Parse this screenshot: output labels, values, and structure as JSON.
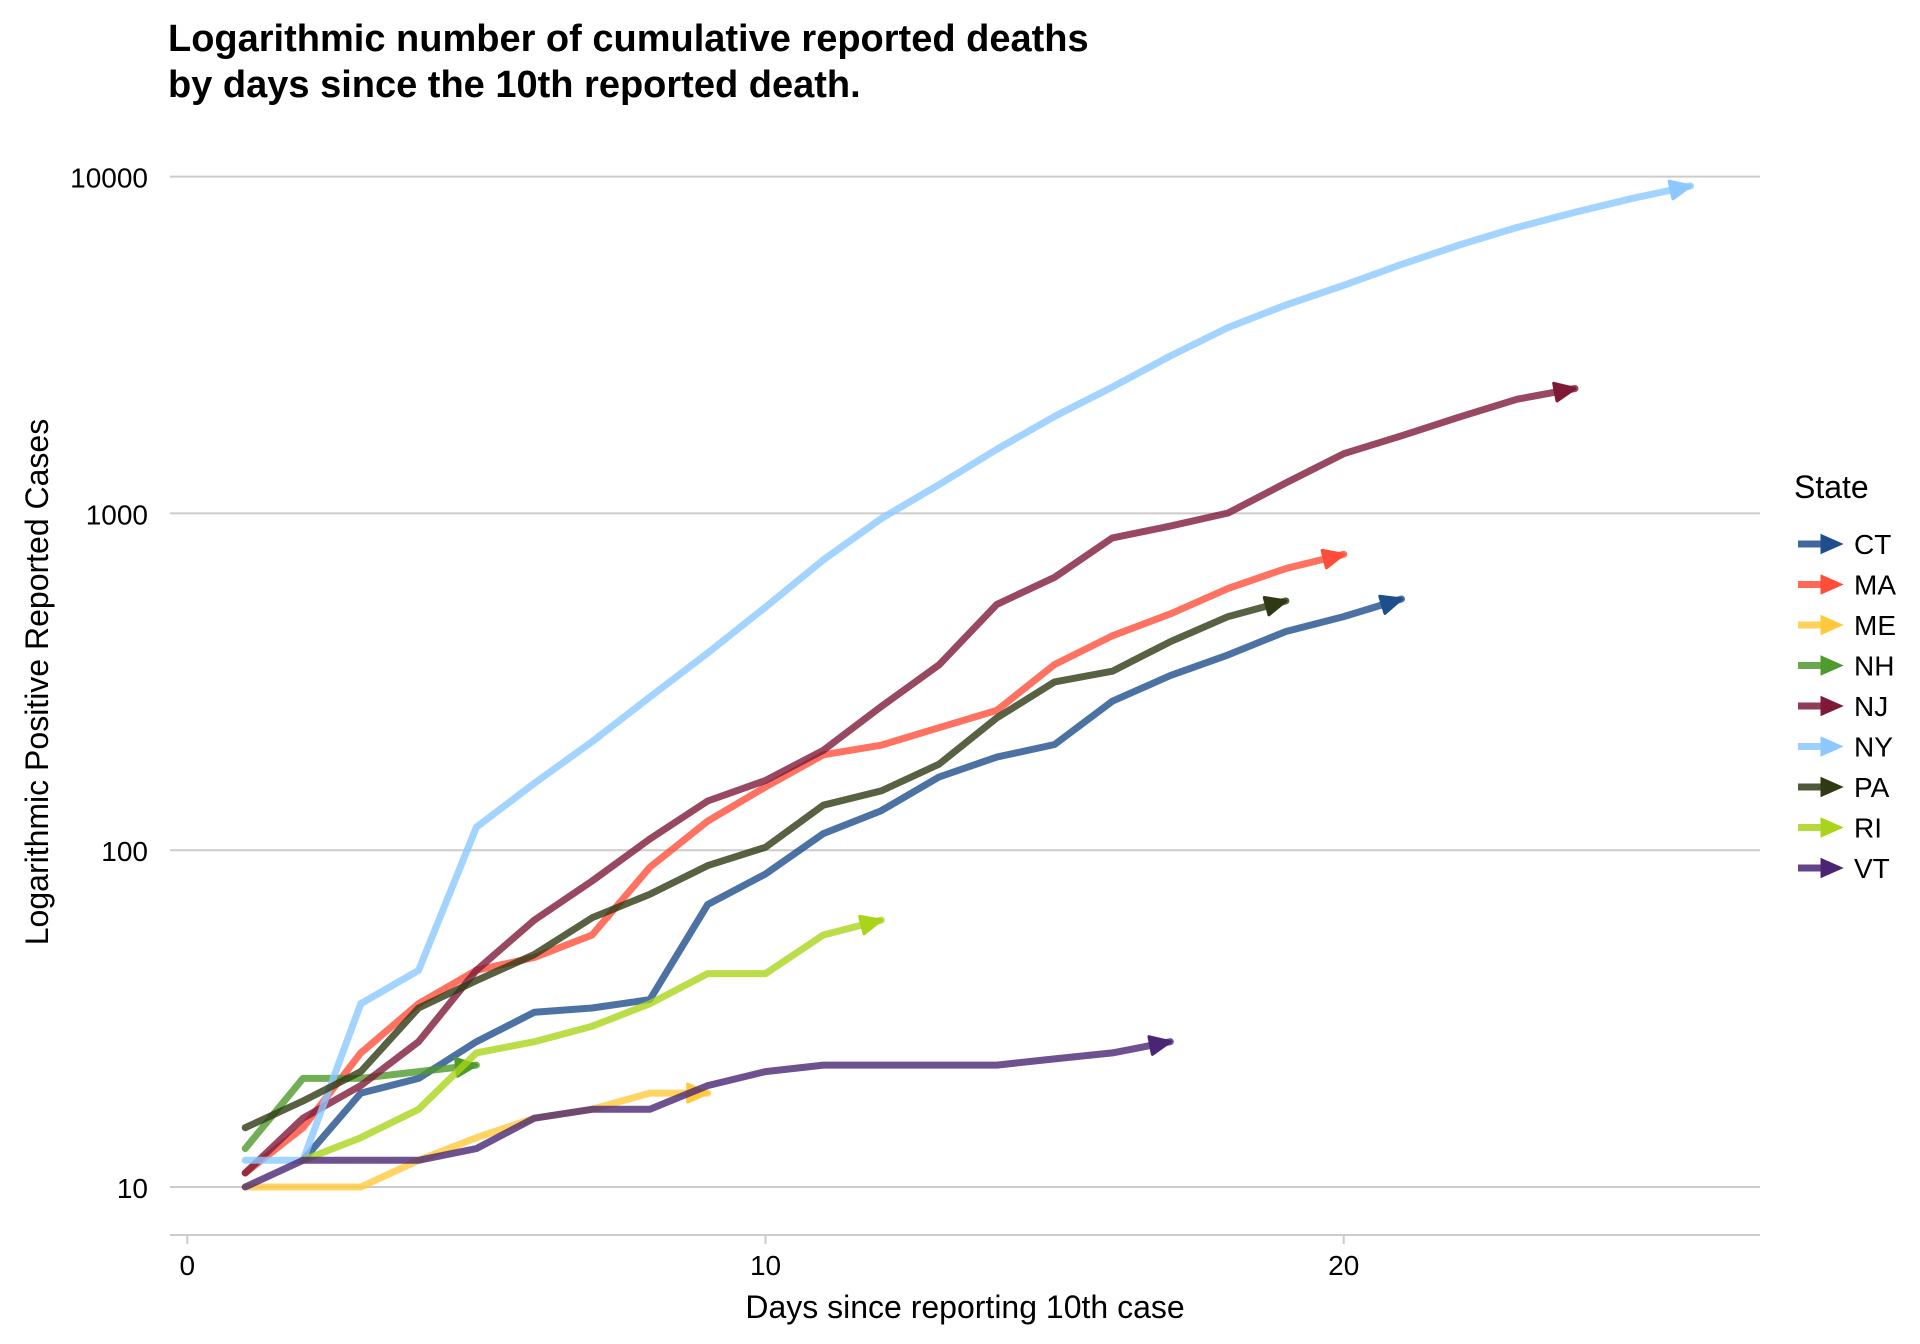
{
  "title_line1": "Logarithmic number of cumulative reported deaths",
  "title_line2": "by days since the 10th reported death.",
  "chart_data": {
    "type": "line",
    "title": "Logarithmic number of cumulative reported deaths by days since the 10th reported death.",
    "xlabel": "Days since reporting 10th case",
    "ylabel": "Logarithmic Positive Reported Cases",
    "y_scale": "log10",
    "xlim": [
      -0.3,
      27.2
    ],
    "ylim": [
      7.2,
      12000
    ],
    "x_ticks": [
      0,
      10,
      20
    ],
    "y_ticks": [
      10,
      100,
      1000,
      10000
    ],
    "grid": "horizontal major lines only",
    "legend": {
      "title": "State",
      "placement": "right"
    },
    "series": [
      {
        "name": "CT",
        "color": "#1F4E8C",
        "x": [
          2,
          3,
          4,
          5,
          6,
          7,
          8,
          9,
          10,
          11,
          12,
          13,
          14,
          15,
          16,
          17,
          18,
          19,
          20,
          21
        ],
        "y": [
          12,
          19,
          21,
          27,
          33,
          34,
          36,
          69,
          85,
          112,
          131,
          165,
          189,
          206,
          277,
          330,
          380,
          446,
          494,
          557
        ]
      },
      {
        "name": "MA",
        "color": "#FF4D3A",
        "x": [
          1,
          2,
          3,
          4,
          5,
          6,
          7,
          8,
          9,
          10,
          11,
          12,
          13,
          14,
          15,
          16,
          17,
          18,
          19,
          20
        ],
        "y": [
          11,
          15,
          25,
          35,
          44,
          48,
          56,
          89,
          122,
          154,
          192,
          205,
          231,
          260,
          356,
          433,
          503,
          599,
          686,
          756
        ]
      },
      {
        "name": "ME",
        "color": "#FFC93C",
        "x": [
          1,
          2,
          3,
          4,
          5,
          6,
          7,
          8,
          9
        ],
        "y": [
          10,
          10,
          10,
          12,
          14,
          16,
          17,
          19,
          19
        ]
      },
      {
        "name": "NH",
        "color": "#4F9A2C",
        "x": [
          1,
          2,
          3,
          4,
          5
        ],
        "y": [
          13,
          21,
          21,
          22,
          23
        ]
      },
      {
        "name": "NJ",
        "color": "#7E1A38",
        "x": [
          1,
          2,
          3,
          4,
          5,
          6,
          7,
          8,
          9,
          10,
          11,
          12,
          13,
          14,
          15,
          16,
          17,
          18,
          19,
          20,
          21,
          22,
          23,
          24
        ],
        "y": [
          11,
          16,
          20,
          27,
          44,
          62,
          81,
          108,
          140,
          161,
          198,
          267,
          355,
          537,
          646,
          846,
          917,
          1003,
          1232,
          1504,
          1700,
          1932,
          2183,
          2350
        ]
      },
      {
        "name": "NY",
        "color": "#8CC8FF",
        "x": [
          1,
          2,
          3,
          4,
          5,
          6,
          7,
          8,
          9,
          10,
          11,
          12,
          13,
          14,
          15,
          16,
          17,
          18,
          19,
          20,
          21,
          22,
          23,
          24,
          25,
          26
        ],
        "y": [
          12,
          12,
          35,
          44,
          117,
          158,
          210,
          285,
          385,
          527,
          728,
          965,
          1218,
          1550,
          1941,
          2373,
          2935,
          3565,
          4159,
          4758,
          5489,
          6268,
          7067,
          7844,
          8627,
          9385
        ]
      },
      {
        "name": "PA",
        "color": "#2F3A14",
        "x": [
          1,
          2,
          3,
          4,
          5,
          6,
          7,
          8,
          9,
          10,
          11,
          12,
          13,
          14,
          15,
          16,
          17,
          18,
          19
        ],
        "y": [
          15,
          18,
          22,
          34,
          41,
          49,
          63,
          74,
          90,
          102,
          136,
          150,
          180,
          247,
          316,
          340,
          416,
          494,
          550
        ]
      },
      {
        "name": "RI",
        "color": "#A9D41A",
        "x": [
          2,
          3,
          4,
          5,
          6,
          7,
          8,
          9,
          10,
          11,
          12
        ],
        "y": [
          12,
          14,
          17,
          25,
          27,
          30,
          35,
          43,
          43,
          56,
          62
        ]
      },
      {
        "name": "VT",
        "color": "#4A2573",
        "x": [
          1,
          2,
          3,
          4,
          5,
          6,
          7,
          8,
          9,
          10,
          11,
          12,
          13,
          14,
          15,
          16,
          17
        ],
        "y": [
          10,
          12,
          12,
          12,
          13,
          16,
          17,
          17,
          20,
          22,
          23,
          23,
          23,
          23,
          24,
          25,
          27
        ]
      }
    ]
  }
}
